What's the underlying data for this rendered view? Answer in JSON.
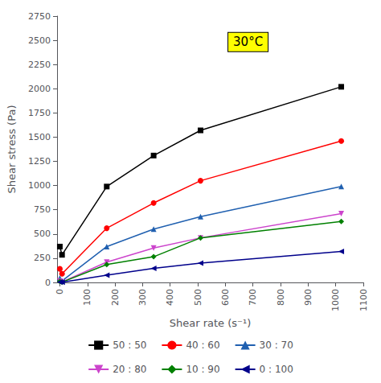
{
  "chart_data": {
    "type": "line",
    "title": "30°C",
    "xlabel": "Shear rate (s⁻¹)",
    "ylabel": "Shear stress (Pa)",
    "xlim": [
      -10,
      1100
    ],
    "ylim": [
      0,
      2750
    ],
    "xticks": [
      0,
      100,
      200,
      300,
      400,
      500,
      600,
      700,
      800,
      900,
      1000,
      1100
    ],
    "yticks": [
      0,
      250,
      500,
      750,
      1000,
      1250,
      1500,
      1750,
      2000,
      2250,
      2500,
      2750
    ],
    "grid": false,
    "legend": "bottom",
    "series": [
      {
        "name": "50 : 50",
        "color": "black",
        "marker": "square",
        "x": [
          0,
          8,
          170,
          340,
          510,
          1020
        ],
        "values": [
          370,
          285,
          990,
          1310,
          1570,
          2020
        ]
      },
      {
        "name": "40 : 60",
        "color": "red",
        "marker": "circle",
        "x": [
          0,
          8,
          170,
          340,
          510,
          1020
        ],
        "values": [
          140,
          90,
          560,
          820,
          1050,
          1460
        ]
      },
      {
        "name": "30 : 70",
        "color": "#2060b0",
        "marker": "triangle_up",
        "x": [
          0,
          8,
          170,
          340,
          510,
          1020
        ],
        "values": [
          45,
          15,
          370,
          550,
          680,
          990
        ]
      },
      {
        "name": "20 : 80",
        "color": "#cc44cc",
        "marker": "triangle_down",
        "x": [
          0,
          8,
          170,
          340,
          510,
          1020
        ],
        "values": [
          15,
          5,
          210,
          355,
          460,
          710
        ]
      },
      {
        "name": "10 : 90",
        "color": "green",
        "marker": "diamond",
        "x": [
          0,
          8,
          170,
          340,
          510,
          1020
        ],
        "values": [
          10,
          3,
          185,
          265,
          460,
          630
        ]
      },
      {
        "name": "0 : 100",
        "color": "#00008b",
        "marker": "triangle_left",
        "x": [
          0,
          8,
          170,
          340,
          510,
          1020
        ],
        "values": [
          5,
          2,
          75,
          145,
          200,
          320
        ]
      }
    ]
  }
}
